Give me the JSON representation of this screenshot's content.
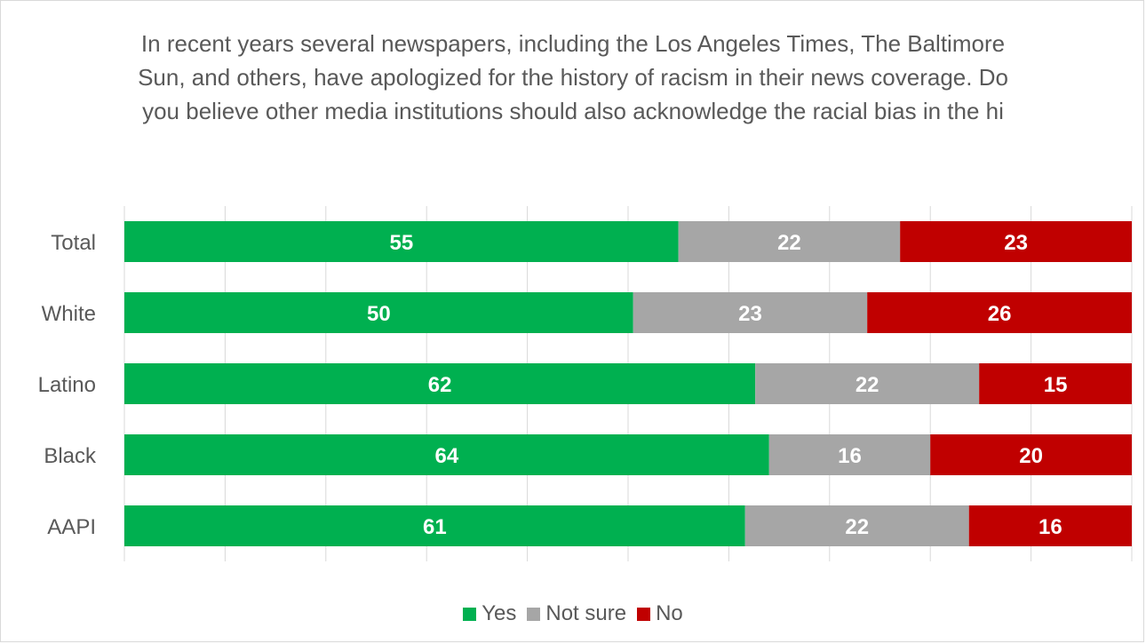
{
  "chart_data": {
    "type": "bar",
    "orientation": "horizontal",
    "stacked": true,
    "title": "In recent years several newspapers, including the Los Angeles Times, The Baltimore Sun, and others, have apologized for the history of racism in their news coverage. Do you believe other media institutions should also acknowledge the racial bias in the hi",
    "categories": [
      "Total",
      "White",
      "Latino",
      "Black",
      "AAPI"
    ],
    "series": [
      {
        "name": "Yes",
        "color": "#00b050",
        "values": [
          55,
          50,
          62,
          64,
          61
        ]
      },
      {
        "name": "Not sure",
        "color": "#a6a6a6",
        "values": [
          22,
          23,
          22,
          16,
          22
        ]
      },
      {
        "name": "No",
        "color": "#c00000",
        "values": [
          23,
          26,
          15,
          20,
          16
        ]
      }
    ],
    "xlim": [
      0,
      100
    ],
    "grid": true,
    "data_labels": true,
    "legend_position": "bottom"
  }
}
